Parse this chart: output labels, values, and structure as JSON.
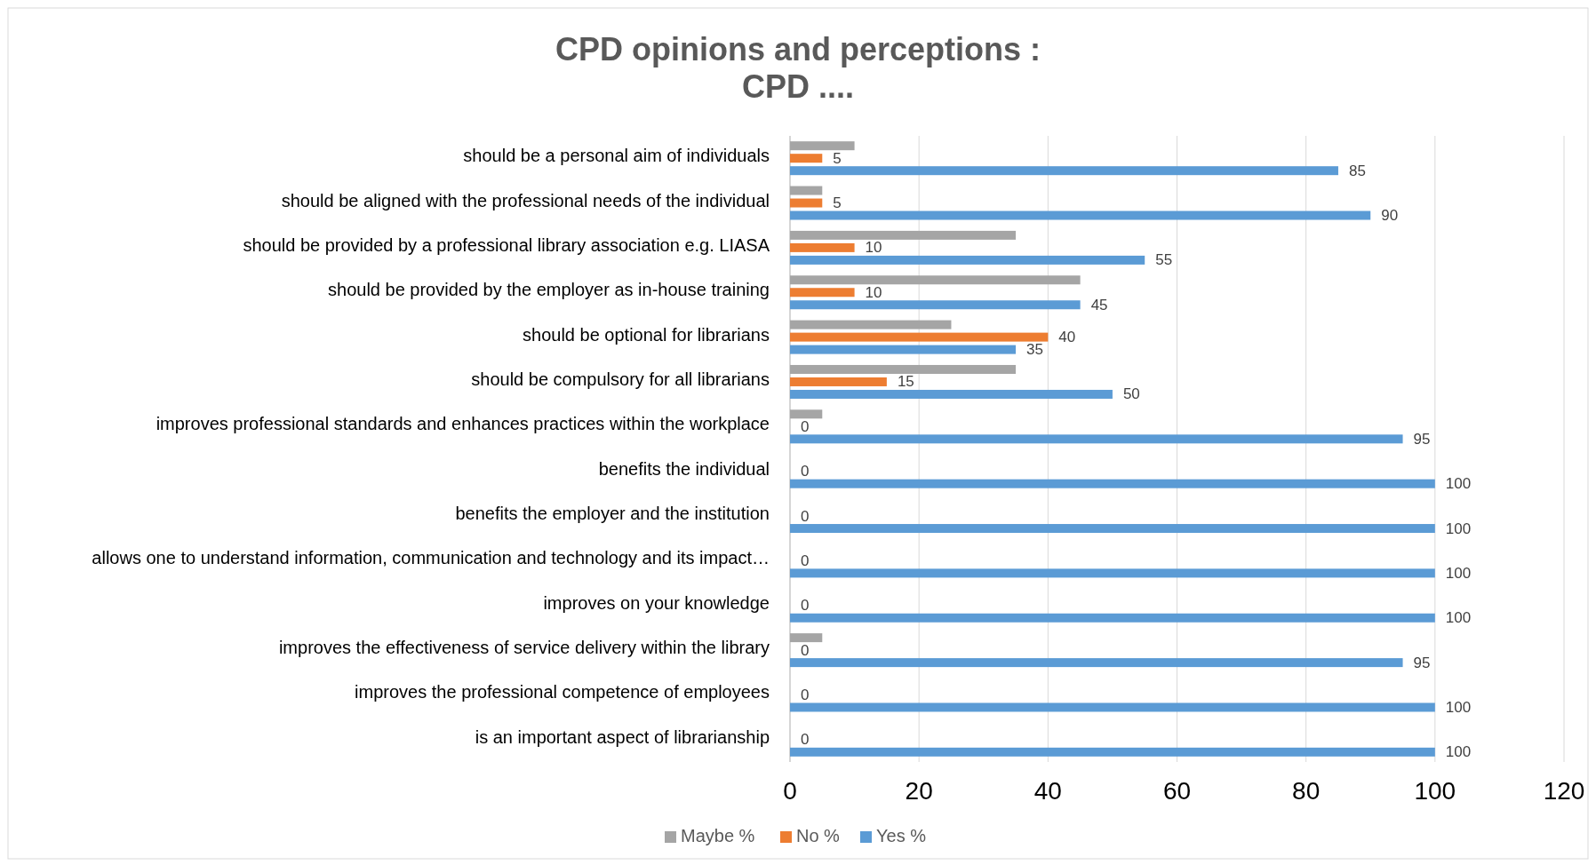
{
  "chart_data": {
    "type": "bar",
    "orientation": "horizontal",
    "title": "CPD opinions and perceptions :\nCPD ....",
    "categories": [
      "should be a personal aim of individuals",
      "should be aligned with the professional needs of the individual",
      "should be provided by a professional library association e.g. LIASA",
      "should be provided by the employer as in-house training",
      "should be optional for librarians",
      "should be compulsory for all librarians",
      "improves professional standards and enhances practices within the workplace",
      "benefits the individual",
      "benefits the employer and the institution",
      "allows one to understand information, communication and technology and its impact…",
      "improves on your knowledge",
      "improves the effectiveness of service delivery within the library",
      "improves the professional competence of employees",
      "is an important aspect of librarianship"
    ],
    "series": [
      {
        "name": "Maybe %",
        "color": "#a5a5a5",
        "values": [
          10,
          5,
          35,
          45,
          25,
          35,
          5,
          0,
          0,
          0,
          0,
          5,
          0,
          0
        ]
      },
      {
        "name": "No %",
        "color": "#ed7d31",
        "values": [
          5,
          5,
          10,
          10,
          40,
          15,
          0,
          0,
          0,
          0,
          0,
          0,
          0,
          0
        ],
        "value_labels": [
          "5",
          "5",
          "10",
          "10",
          "40",
          "15",
          "0",
          "0",
          "0",
          "0",
          "0",
          "0",
          "0",
          "0"
        ]
      },
      {
        "name": "Yes %",
        "color": "#5b9bd5",
        "values": [
          85,
          90,
          55,
          45,
          35,
          50,
          95,
          100,
          100,
          100,
          100,
          95,
          100,
          100
        ],
        "value_labels": [
          "85",
          "90",
          "55",
          "45",
          "35",
          "50",
          "95",
          "100",
          "100",
          "100",
          "100",
          "95",
          "100",
          "100"
        ]
      }
    ],
    "xlim": [
      0,
      120
    ],
    "xticks": [
      0,
      20,
      40,
      60,
      80,
      100,
      120
    ],
    "grid": "x",
    "legend": "bottom"
  }
}
